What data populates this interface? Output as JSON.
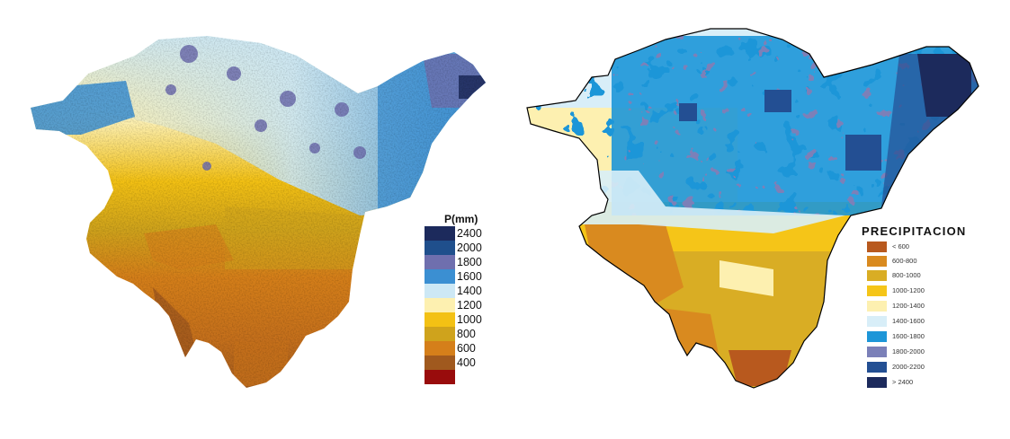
{
  "maps": [
    {
      "legend_title": "P(mm)",
      "legend": [
        {
          "label": "2400",
          "color": "#1c2a5c"
        },
        {
          "label": "2000",
          "color": "#1f4f8c"
        },
        {
          "label": "1800",
          "color": "#6f6fae"
        },
        {
          "label": "1600",
          "color": "#3b8fd2"
        },
        {
          "label": "1400",
          "color": "#cde8f5"
        },
        {
          "label": "1200",
          "color": "#fdf0b0"
        },
        {
          "label": "1000",
          "color": "#f3c114"
        },
        {
          "label": "800",
          "color": "#cfa31c"
        },
        {
          "label": "600",
          "color": "#d57f1a"
        },
        {
          "label": "400",
          "color": "#a0591e"
        },
        {
          "label": "",
          "color": "#990c0c"
        }
      ]
    },
    {
      "legend_title": "PRECIPITACION",
      "legend": [
        {
          "label": "< 600",
          "color": "#b8591e"
        },
        {
          "label": "600-800",
          "color": "#d98a1f"
        },
        {
          "label": "800-1000",
          "color": "#d9ad24"
        },
        {
          "label": "1000-1200",
          "color": "#f5c518"
        },
        {
          "label": "1200-1400",
          "color": "#fdf0b0"
        },
        {
          "label": "1400-1600",
          "color": "#d8eef8"
        },
        {
          "label": "1600-1800",
          "color": "#1d96d8"
        },
        {
          "label": "1800-2000",
          "color": "#7b80b8"
        },
        {
          "label": "2000-2200",
          "color": "#234f93"
        },
        {
          "label": "> 2400",
          "color": "#1c2a5c"
        }
      ]
    }
  ]
}
